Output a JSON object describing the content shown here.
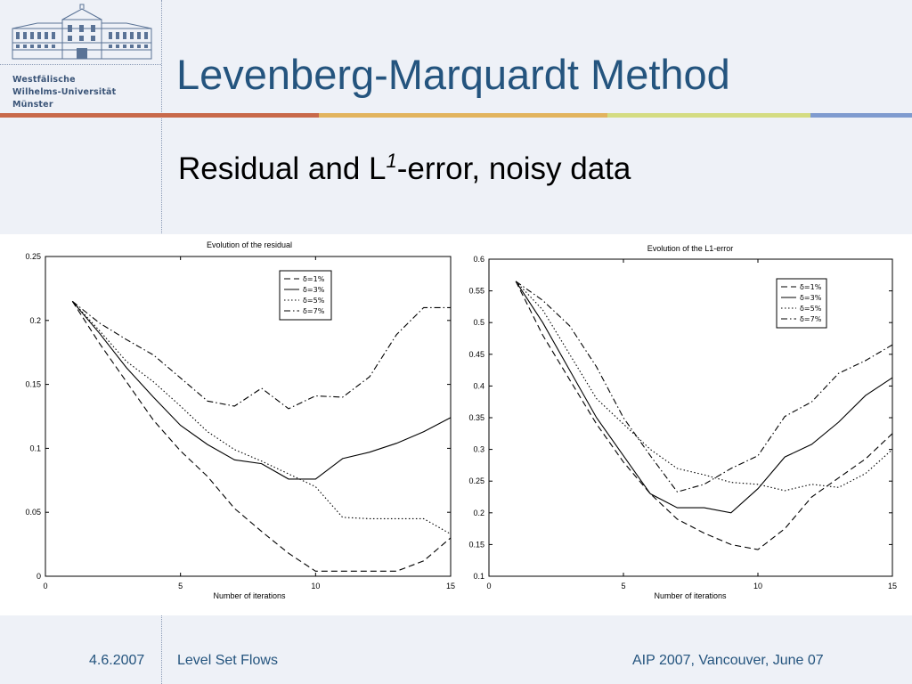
{
  "logo": {
    "line1": "Westfälische",
    "line2": "Wilhelms-Universität",
    "line3": "Münster",
    "icon": "university-building-icon"
  },
  "slide": {
    "title": "Levenberg-Marquardt Method",
    "subtitle_pre": "Residual and L",
    "subtitle_sup": "1",
    "subtitle_post": "-error, noisy data"
  },
  "colors": {
    "title": "#24547e",
    "bar1": "#c8694a",
    "bar2": "#e2b45e",
    "bar3": "#d4dc82",
    "bar4": "#7f9bcf"
  },
  "footer": {
    "date": "4.6.2007",
    "topic": "Level Set Flows",
    "event": "AIP 2007, Vancouver, June 07"
  },
  "chart_data": [
    {
      "type": "line",
      "title": "Evolution of the residual",
      "xlabel": "Number of iterations",
      "ylabel": "",
      "xlim": [
        0,
        15
      ],
      "ylim": [
        0,
        0.25
      ],
      "xticks": [
        "0",
        "5",
        "10",
        "15"
      ],
      "yticks": [
        "0",
        "0.05",
        "0.1",
        "0.15",
        "0.2",
        "0.25"
      ],
      "legend_position": "top-right",
      "x": [
        1,
        2,
        3,
        4,
        5,
        6,
        7,
        8,
        9,
        10,
        11,
        12,
        13,
        14,
        15
      ],
      "series": [
        {
          "name": "δ=1%",
          "style": "dashed",
          "values": [
            0.215,
            0.182,
            0.152,
            0.122,
            0.098,
            0.078,
            0.053,
            0.035,
            0.018,
            0.004,
            0.004,
            0.004,
            0.004,
            0.012,
            0.03
          ]
        },
        {
          "name": "δ=3%",
          "style": "solid",
          "values": [
            0.215,
            0.19,
            0.163,
            0.14,
            0.118,
            0.103,
            0.091,
            0.088,
            0.076,
            0.076,
            0.092,
            0.097,
            0.104,
            0.113,
            0.124
          ]
        },
        {
          "name": "δ=5%",
          "style": "dotted",
          "values": [
            0.215,
            0.192,
            0.168,
            0.152,
            0.133,
            0.113,
            0.099,
            0.09,
            0.08,
            0.07,
            0.046,
            0.045,
            0.045,
            0.045,
            0.033
          ]
        },
        {
          "name": "δ=7%",
          "style": "dashdot",
          "values": [
            0.215,
            0.198,
            0.185,
            0.173,
            0.155,
            0.137,
            0.133,
            0.147,
            0.131,
            0.141,
            0.14,
            0.156,
            0.189,
            0.21,
            0.21
          ]
        }
      ]
    },
    {
      "type": "line",
      "title": "Evolution of the L1-error",
      "xlabel": "Number of iterations",
      "ylabel": "",
      "xlim": [
        0,
        15
      ],
      "ylim": [
        0.1,
        0.6
      ],
      "xticks": [
        "0",
        "5",
        "10",
        "15"
      ],
      "yticks": [
        "0.1",
        "0.15",
        "0.2",
        "0.25",
        "0.3",
        "0.35",
        "0.4",
        "0.45",
        "0.5",
        "0.55",
        "0.6"
      ],
      "legend_position": "top-right",
      "x": [
        1,
        2,
        3,
        4,
        5,
        6,
        7,
        8,
        9,
        10,
        11,
        12,
        13,
        14,
        15
      ],
      "series": [
        {
          "name": "δ=1%",
          "style": "dashed",
          "values": [
            0.565,
            0.48,
            0.41,
            0.34,
            0.28,
            0.23,
            0.19,
            0.168,
            0.15,
            0.142,
            0.175,
            0.225,
            0.255,
            0.285,
            0.325
          ]
        },
        {
          "name": "δ=3%",
          "style": "solid",
          "values": [
            0.565,
            0.5,
            0.425,
            0.35,
            0.29,
            0.23,
            0.208,
            0.208,
            0.2,
            0.238,
            0.288,
            0.308,
            0.343,
            0.385,
            0.413
          ]
        },
        {
          "name": "δ=5%",
          "style": "dotted",
          "values": [
            0.565,
            0.52,
            0.45,
            0.38,
            0.34,
            0.3,
            0.27,
            0.26,
            0.248,
            0.245,
            0.235,
            0.245,
            0.24,
            0.262,
            0.3
          ]
        },
        {
          "name": "δ=7%",
          "style": "dashdot",
          "values": [
            0.565,
            0.535,
            0.495,
            0.43,
            0.35,
            0.29,
            0.233,
            0.245,
            0.27,
            0.29,
            0.352,
            0.375,
            0.42,
            0.44,
            0.465
          ]
        }
      ]
    }
  ]
}
